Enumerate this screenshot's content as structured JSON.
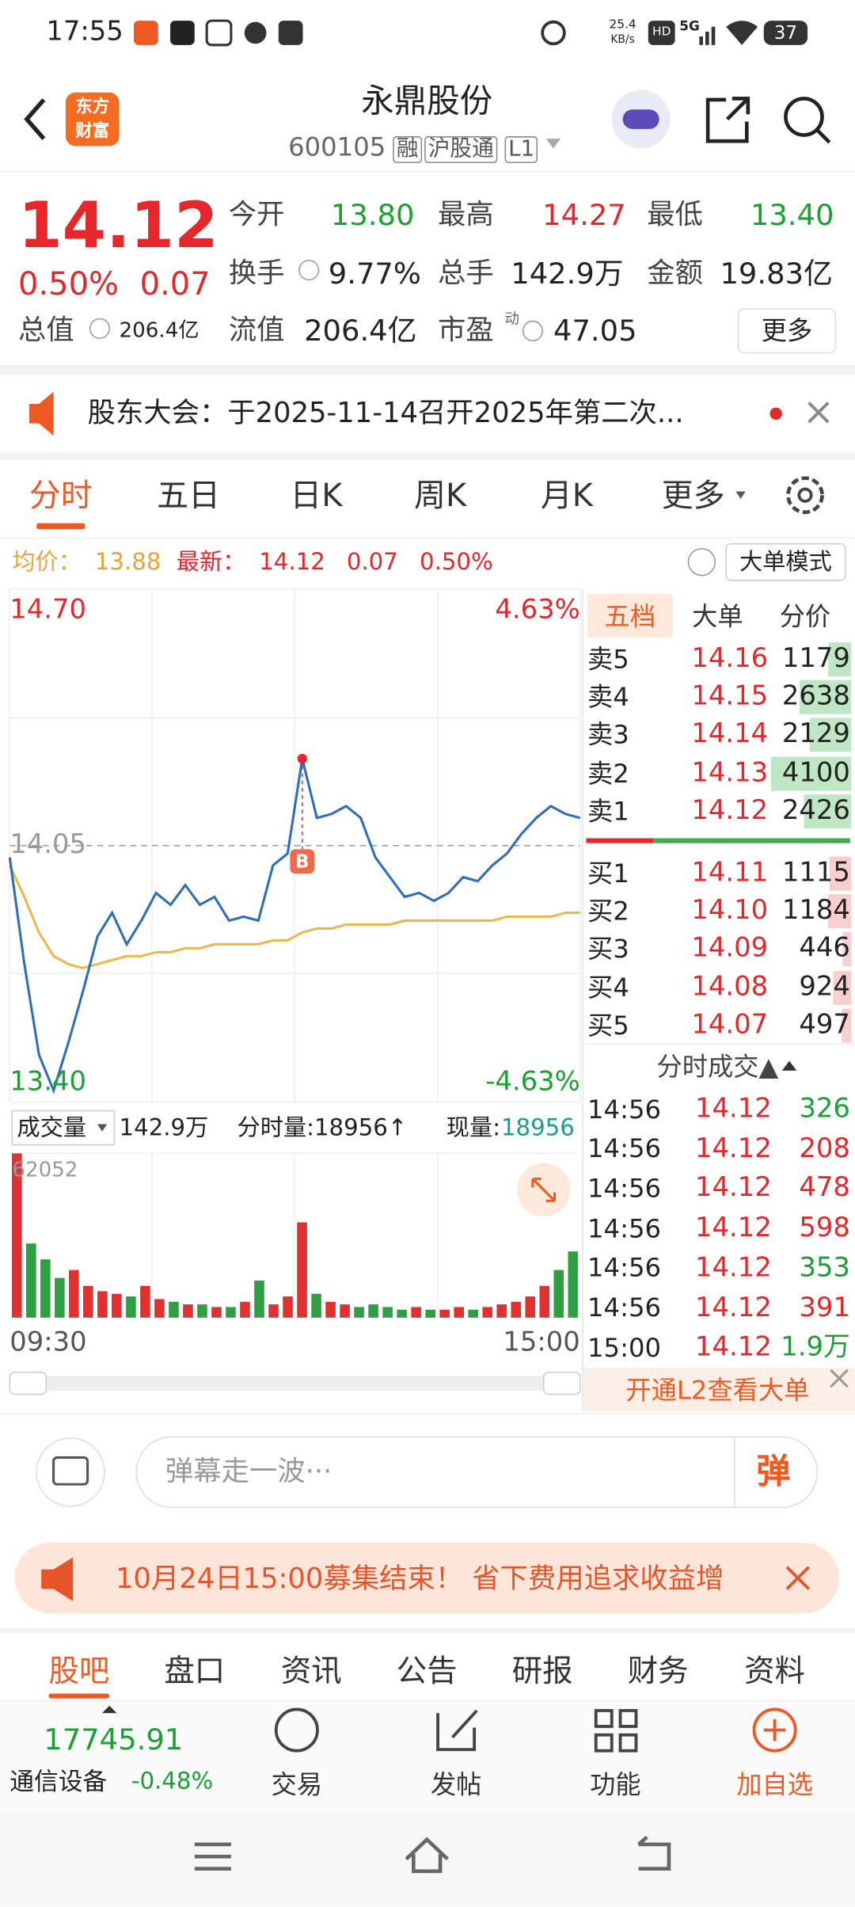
{
  "status_bar": {
    "time": "17:55",
    "net_speed": "25.4",
    "net_unit": "KB/s",
    "hd": "HD",
    "signal": "5G",
    "battery": "37"
  },
  "header": {
    "logo": [
      "东方",
      "财富"
    ],
    "title": "永鼎股份",
    "code": "600105",
    "tags": [
      "融",
      "沪股通",
      "L1"
    ]
  },
  "quote": {
    "price": "14.12",
    "change_pct": "0.50%",
    "change": "0.07",
    "more": "更多",
    "fields": [
      {
        "label": "今开",
        "value": "13.80",
        "color": "#1aa033"
      },
      {
        "label": "最高",
        "value": "14.27",
        "color": "#e5262b"
      },
      {
        "label": "最低",
        "value": "13.40",
        "color": "#1aa033"
      },
      {
        "label": "换手",
        "value": "9.77%"
      },
      {
        "label": "总手",
        "value": "142.9万"
      },
      {
        "label": "金额",
        "value": "19.83亿"
      },
      {
        "label": "总值",
        "value": "206.4亿"
      },
      {
        "label": "流值",
        "value": "206.4亿"
      },
      {
        "label": "市盈",
        "sup": "动",
        "value": "47.05"
      }
    ]
  },
  "notice": {
    "text": "股东大会：于2025-11-14召开2025年第二次..."
  },
  "tabs": [
    "分时",
    "五日",
    "日K",
    "周K",
    "月K",
    "更多"
  ],
  "info": {
    "avg_label": "均价：",
    "avg": "13.88",
    "latest_label": "最新：",
    "latest": "14.12",
    "change": "0.07",
    "change_pct": "0.50%",
    "mode": "大单模式"
  },
  "chart": {
    "type": "line",
    "ylim": [
      13.4,
      14.7
    ],
    "yticks": [
      {
        "value": 14.7,
        "label": "14.70"
      },
      {
        "value": 14.05,
        "label": "14.05"
      },
      {
        "value": 13.4,
        "label": "13.40"
      }
    ],
    "y2lim": [
      -4.63,
      4.63
    ],
    "y2ticks": [
      {
        "value": 4.63,
        "label": "4.63%"
      },
      {
        "value": -4.63,
        "label": "-4.63%"
      }
    ],
    "xticks": [
      "09:30",
      "15:00"
    ],
    "price_color": "#2f6db5",
    "avg_color": "#e9b949",
    "marker": "B",
    "price": [
      14.02,
      13.75,
      13.52,
      13.43,
      13.55,
      13.68,
      13.82,
      13.88,
      13.8,
      13.86,
      13.93,
      13.9,
      13.95,
      13.9,
      13.92,
      13.86,
      13.87,
      13.86,
      14.0,
      14.03,
      14.27,
      14.12,
      14.13,
      14.15,
      14.12,
      14.02,
      13.97,
      13.92,
      13.93,
      13.91,
      13.93,
      13.97,
      13.96,
      14.0,
      14.03,
      14.08,
      14.12,
      14.15,
      14.13,
      14.12
    ],
    "avg": [
      14.0,
      13.92,
      13.83,
      13.77,
      13.75,
      13.74,
      13.75,
      13.76,
      13.77,
      13.77,
      13.78,
      13.78,
      13.79,
      13.79,
      13.8,
      13.8,
      13.8,
      13.8,
      13.81,
      13.81,
      13.83,
      13.84,
      13.84,
      13.85,
      13.85,
      13.85,
      13.85,
      13.86,
      13.86,
      13.86,
      13.86,
      13.86,
      13.86,
      13.86,
      13.87,
      13.87,
      13.87,
      13.87,
      13.88,
      13.88
    ]
  },
  "volume": {
    "type": "bar",
    "label": "成交量",
    "total": "142.9万",
    "minute_label": "分时量:18956↑",
    "current_label": "现量:",
    "current": "18956",
    "ylim": [
      0,
      62052
    ],
    "yticks": [
      62052
    ],
    "values": [
      62052,
      28000,
      22000,
      15000,
      18000,
      12000,
      10000,
      9000,
      8000,
      12000,
      7000,
      6000,
      5000,
      5000,
      4000,
      4000,
      6000,
      14000,
      5000,
      8000,
      36000,
      9000,
      6000,
      5000,
      4000,
      5000,
      4000,
      3000,
      4000,
      3000,
      3000,
      4000,
      3000,
      4000,
      5000,
      6000,
      8000,
      12000,
      18000,
      25000
    ],
    "up": [
      true,
      false,
      false,
      false,
      true,
      true,
      true,
      true,
      false,
      true,
      true,
      false,
      true,
      false,
      true,
      false,
      true,
      false,
      true,
      true,
      true,
      false,
      true,
      true,
      false,
      false,
      false,
      false,
      true,
      false,
      true,
      true,
      false,
      true,
      true,
      true,
      true,
      true,
      false,
      false
    ]
  },
  "order_book": {
    "tabs": [
      "五档",
      "大单",
      "分价"
    ],
    "asks": [
      {
        "label": "卖5",
        "price": "14.16",
        "volume": 1179
      },
      {
        "label": "卖4",
        "price": "14.15",
        "volume": 2638
      },
      {
        "label": "卖3",
        "price": "14.14",
        "volume": 2129
      },
      {
        "label": "卖2",
        "price": "14.13",
        "volume": 4100
      },
      {
        "label": "卖1",
        "price": "14.12",
        "volume": 2426
      }
    ],
    "bids": [
      {
        "label": "买1",
        "price": "14.11",
        "volume": 1115
      },
      {
        "label": "买2",
        "price": "14.10",
        "volume": 1184
      },
      {
        "label": "买3",
        "price": "14.09",
        "volume": 446
      },
      {
        "label": "买4",
        "price": "14.08",
        "volume": 924
      },
      {
        "label": "买5",
        "price": "14.07",
        "volume": 497
      }
    ]
  },
  "trades": {
    "title": "分时成交▲",
    "rows": [
      {
        "time": "14:56",
        "price": "14.12",
        "volume": "326",
        "side": "sell"
      },
      {
        "time": "14:56",
        "price": "14.12",
        "volume": "208",
        "side": "buy"
      },
      {
        "time": "14:56",
        "price": "14.12",
        "volume": "478",
        "side": "buy"
      },
      {
        "time": "14:56",
        "price": "14.12",
        "volume": "598",
        "side": "buy"
      },
      {
        "time": "14:56",
        "price": "14.12",
        "volume": "353",
        "side": "sell"
      },
      {
        "time": "14:56",
        "price": "14.12",
        "volume": "391",
        "side": "buy"
      },
      {
        "time": "15:00",
        "price": "14.12",
        "volume": "1.9万",
        "side": "sell"
      }
    ]
  },
  "l2_banner": "开通L2查看大单",
  "danmu": {
    "placeholder": "弹幕走一波···",
    "button": "弹"
  },
  "promo": "10月24日15:00募集结束！ 省下费用追求收益增",
  "bottom_tabs": [
    "股吧",
    "盘口",
    "资讯",
    "公告",
    "研报",
    "财务",
    "资料"
  ],
  "footer": {
    "index_value": "17745.91",
    "index_name": "通信设备",
    "index_change": "-0.48%",
    "actions": [
      "交易",
      "发帖",
      "功能",
      "加自选"
    ]
  }
}
